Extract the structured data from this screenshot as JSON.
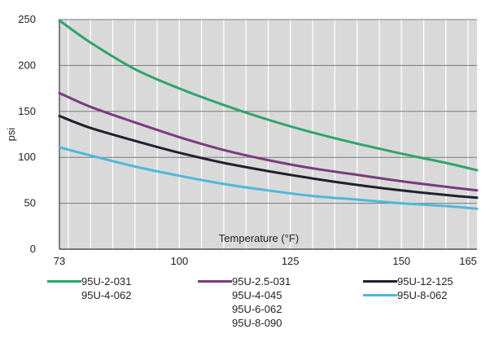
{
  "chart_data": {
    "type": "line",
    "title": "",
    "xlabel": "Temperature (°F)",
    "ylabel": "psi",
    "xlim": [
      73,
      167
    ],
    "ylim": [
      0,
      250
    ],
    "x_ticks": [
      73,
      100,
      125,
      150,
      165
    ],
    "y_ticks": [
      0,
      50,
      100,
      150,
      200,
      250
    ],
    "grid": true,
    "legend_position": "bottom",
    "series": [
      {
        "names": [
          "95U-2-031",
          "95U-4-062"
        ],
        "color": "#2fa36b",
        "x": [
          73,
          80,
          90,
          100,
          110,
          120,
          130,
          140,
          150,
          160,
          167
        ],
        "y": [
          249,
          225,
          196,
          175,
          157,
          141,
          127,
          115,
          104,
          94,
          86
        ]
      },
      {
        "names": [
          "95U-2.5-031",
          "95U-4-045",
          "95U-6-062",
          "95U-8-090"
        ],
        "color": "#7a3a7e",
        "x": [
          73,
          80,
          90,
          100,
          110,
          120,
          130,
          140,
          150,
          160,
          167
        ],
        "y": [
          170,
          155,
          138,
          122,
          108,
          97,
          88,
          81,
          74,
          68,
          64
        ]
      },
      {
        "names": [
          "95U-12-125"
        ],
        "color": "#1f1f2e",
        "x": [
          73,
          80,
          90,
          100,
          110,
          120,
          130,
          140,
          150,
          160,
          167
        ],
        "y": [
          145,
          132,
          118,
          105,
          94,
          85,
          77,
          70,
          64,
          59,
          56
        ]
      },
      {
        "names": [
          "95U-8-062"
        ],
        "color": "#4fb8d8",
        "x": [
          73,
          80,
          90,
          100,
          110,
          120,
          130,
          140,
          150,
          160,
          167
        ],
        "y": [
          111,
          102,
          90,
          80,
          71,
          64,
          58,
          54,
          50,
          47,
          44
        ]
      }
    ]
  }
}
